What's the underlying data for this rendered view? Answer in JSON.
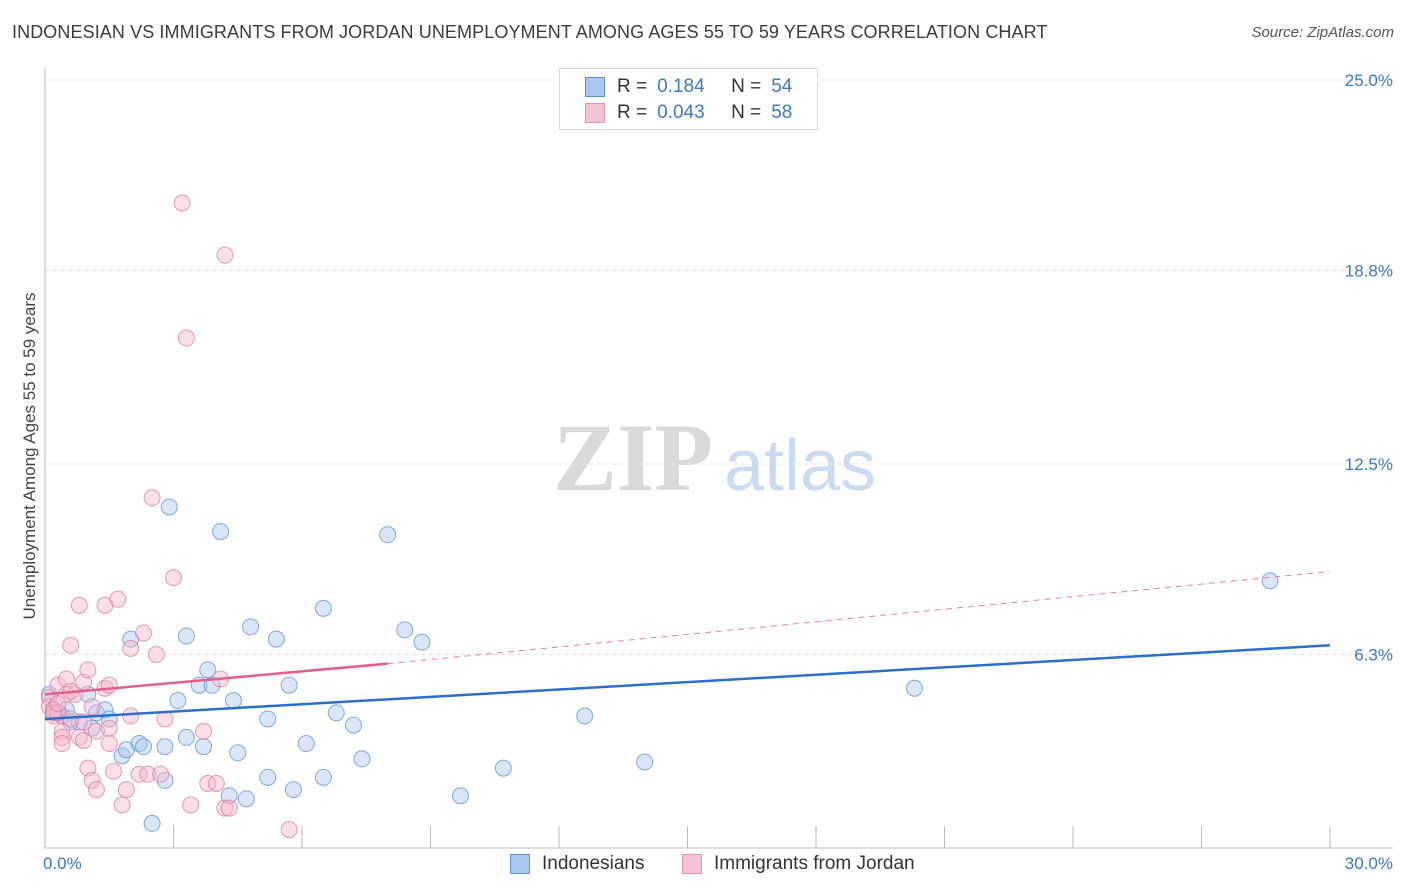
{
  "header": {
    "title": "INDONESIAN VS IMMIGRANTS FROM JORDAN UNEMPLOYMENT AMONG AGES 55 TO 59 YEARS CORRELATION CHART",
    "source": "Source: ZipAtlas.com"
  },
  "watermark": {
    "zip": "ZIP",
    "atlas": "atlas"
  },
  "legend": {
    "r_label": "R =",
    "n_label": "N =",
    "series": [
      {
        "name": "Indonesians",
        "r": "0.184",
        "n": "54"
      },
      {
        "name": "Immigrants from Jordan",
        "r": "0.043",
        "n": "58"
      }
    ]
  },
  "chart_data": {
    "type": "scatter",
    "title": "INDONESIAN VS IMMIGRANTS FROM JORDAN UNEMPLOYMENT AMONG AGES 55 TO 59 YEARS CORRELATION CHART",
    "xlabel": "",
    "ylabel": "Unemployment Among Ages 55 to 59 years",
    "xlim": [
      0,
      30
    ],
    "ylim": [
      0,
      25
    ],
    "x_tick_labels": [
      "0.0%",
      "30.0%"
    ],
    "y_ticks": [
      6.3,
      12.5,
      18.8,
      25.0
    ],
    "y_tick_labels": [
      "6.3%",
      "12.5%",
      "18.8%",
      "25.0%"
    ],
    "grid": true,
    "colors": {
      "Indonesians": {
        "fill": "#a9c8f0",
        "stroke": "#5b8fd6",
        "trend": "#2a6fce"
      },
      "Immigrants from Jordan": {
        "fill": "#f5b8cb",
        "stroke": "#e07a9b",
        "trend": "#e0608c"
      },
      "tick_label": "#3a78c9"
    },
    "series": [
      {
        "name": "Indonesians",
        "trend": {
          "x": [
            0,
            30
          ],
          "y": [
            4.2,
            6.6
          ],
          "dashed_extension": false
        },
        "points": [
          [
            0.1,
            5.0
          ],
          [
            0.2,
            4.5
          ],
          [
            0.3,
            4.4
          ],
          [
            0.4,
            4.3
          ],
          [
            0.5,
            4.5
          ],
          [
            0.6,
            4.1
          ],
          [
            0.8,
            4.1
          ],
          [
            1.0,
            5.0
          ],
          [
            1.1,
            3.9
          ],
          [
            1.2,
            4.4
          ],
          [
            1.4,
            4.5
          ],
          [
            1.5,
            4.2
          ],
          [
            1.8,
            3.0
          ],
          [
            1.9,
            3.2
          ],
          [
            2.0,
            6.8
          ],
          [
            2.2,
            3.4
          ],
          [
            2.3,
            3.3
          ],
          [
            2.5,
            0.8
          ],
          [
            2.8,
            3.3
          ],
          [
            2.8,
            2.2
          ],
          [
            2.9,
            11.1
          ],
          [
            3.1,
            4.8
          ],
          [
            3.3,
            6.9
          ],
          [
            3.3,
            3.6
          ],
          [
            3.6,
            5.3
          ],
          [
            3.7,
            3.3
          ],
          [
            3.8,
            5.8
          ],
          [
            3.9,
            5.3
          ],
          [
            4.1,
            10.3
          ],
          [
            4.3,
            1.7
          ],
          [
            4.4,
            4.8
          ],
          [
            4.5,
            3.1
          ],
          [
            4.7,
            1.6
          ],
          [
            4.8,
            7.2
          ],
          [
            5.2,
            2.3
          ],
          [
            5.2,
            4.2
          ],
          [
            5.4,
            6.8
          ],
          [
            5.7,
            5.3
          ],
          [
            5.8,
            1.9
          ],
          [
            6.1,
            3.4
          ],
          [
            6.5,
            7.8
          ],
          [
            6.5,
            2.3
          ],
          [
            6.8,
            4.4
          ],
          [
            7.2,
            4.0
          ],
          [
            7.4,
            2.9
          ],
          [
            8.0,
            10.2
          ],
          [
            8.4,
            7.1
          ],
          [
            8.8,
            6.7
          ],
          [
            9.7,
            1.7
          ],
          [
            10.7,
            2.6
          ],
          [
            12.6,
            4.3
          ],
          [
            14.0,
            2.8
          ],
          [
            20.3,
            5.2
          ],
          [
            28.6,
            8.7
          ]
        ]
      },
      {
        "name": "Immigrants from Jordan",
        "trend": {
          "x": [
            0,
            8
          ],
          "y": [
            5.0,
            6.0
          ],
          "dashed_extension": {
            "x": [
              8,
              30
            ],
            "y": [
              6.0,
              9.0
            ]
          }
        },
        "points": [
          [
            0.1,
            4.9
          ],
          [
            0.1,
            4.6
          ],
          [
            0.2,
            4.3
          ],
          [
            0.2,
            4.5
          ],
          [
            0.3,
            4.4
          ],
          [
            0.3,
            5.3
          ],
          [
            0.4,
            3.8
          ],
          [
            0.4,
            3.6
          ],
          [
            0.5,
            5.5
          ],
          [
            0.5,
            5.0
          ],
          [
            0.6,
            4.2
          ],
          [
            0.6,
            6.6
          ],
          [
            0.7,
            5.0
          ],
          [
            0.8,
            3.6
          ],
          [
            0.8,
            7.9
          ],
          [
            0.9,
            5.4
          ],
          [
            0.9,
            4.1
          ],
          [
            1.0,
            5.8
          ],
          [
            1.0,
            2.6
          ],
          [
            1.1,
            2.2
          ],
          [
            1.2,
            1.9
          ],
          [
            1.2,
            3.8
          ],
          [
            1.4,
            7.9
          ],
          [
            1.4,
            5.2
          ],
          [
            1.5,
            3.4
          ],
          [
            1.5,
            5.3
          ],
          [
            1.6,
            2.5
          ],
          [
            1.7,
            8.1
          ],
          [
            1.8,
            1.4
          ],
          [
            1.9,
            1.9
          ],
          [
            2.0,
            4.3
          ],
          [
            2.0,
            6.5
          ],
          [
            2.2,
            2.4
          ],
          [
            2.3,
            7.0
          ],
          [
            2.4,
            2.4
          ],
          [
            2.5,
            11.4
          ],
          [
            2.6,
            6.3
          ],
          [
            2.7,
            2.4
          ],
          [
            2.8,
            4.2
          ],
          [
            3.0,
            8.8
          ],
          [
            3.2,
            21.0
          ],
          [
            3.3,
            16.6
          ],
          [
            3.4,
            1.4
          ],
          [
            3.7,
            3.8
          ],
          [
            3.8,
            2.1
          ],
          [
            4.0,
            2.1
          ],
          [
            4.1,
            5.5
          ],
          [
            4.2,
            19.3
          ],
          [
            4.2,
            1.3
          ],
          [
            4.3,
            1.3
          ],
          [
            5.7,
            0.6
          ],
          [
            0.2,
            4.4
          ],
          [
            0.3,
            4.7
          ],
          [
            0.6,
            5.1
          ],
          [
            1.1,
            4.6
          ],
          [
            1.5,
            3.9
          ],
          [
            0.9,
            3.5
          ],
          [
            0.4,
            3.4
          ]
        ]
      }
    ]
  }
}
